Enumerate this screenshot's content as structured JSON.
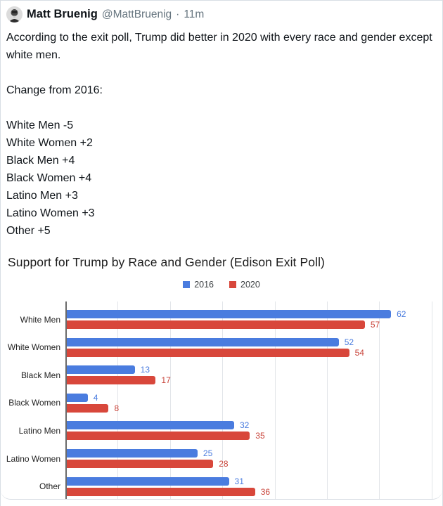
{
  "tweet": {
    "display_name": "Matt Bruenig",
    "handle": "@MattBruenig",
    "separator": "·",
    "timestamp": "11m",
    "body_lines": [
      "According to the exit poll, Trump did better in 2020 with every race and gender except white men.",
      "",
      "Change from 2016:",
      "",
      "White Men -5",
      "White Women +2",
      "Black Men +4",
      "Black Women +4",
      "Latino Men +3",
      "Latino Women +3",
      "Other +5"
    ]
  },
  "chart_data": {
    "type": "bar",
    "orientation": "horizontal",
    "title": "Support for Trump by Race and Gender (Edison Exit Poll)",
    "categories": [
      "White Men",
      "White Women",
      "Black Men",
      "Black Women",
      "Latino Men",
      "Latino Women",
      "Other"
    ],
    "series": [
      {
        "name": "2016",
        "color": "#4a7cdf",
        "label_color": "#4a7cdf",
        "values": [
          62,
          52,
          13,
          4,
          32,
          25,
          31
        ]
      },
      {
        "name": "2020",
        "color": "#d8473b",
        "label_color": "#c9453b",
        "values": [
          57,
          54,
          17,
          8,
          35,
          28,
          36
        ]
      }
    ],
    "xlim": [
      0,
      71
    ],
    "gridline_step": 10,
    "grid": true,
    "legend_position": "top",
    "value_labels": true
  },
  "colors": {
    "accent_blue": "#4a7cdf",
    "accent_red": "#d8473b",
    "text_primary": "#0f1419",
    "text_secondary": "#66757f",
    "border": "#d8dee4",
    "gridline": "#e2e5e9",
    "axis": "#6a6a6a"
  }
}
